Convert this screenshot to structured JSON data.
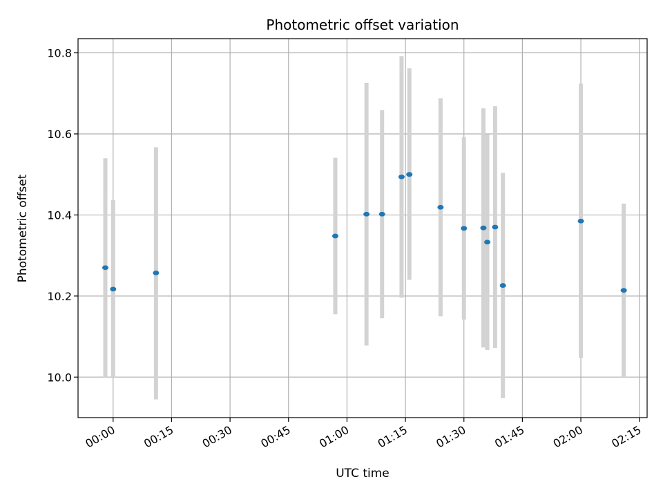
{
  "chart_data": {
    "type": "scatter",
    "title": "Photometric offset variation",
    "xlabel": "UTC time",
    "ylabel": "Photometric offset",
    "x_unit": "UTC time (HH:MM)",
    "xlim": [
      "-00:09",
      "02:17"
    ],
    "ylim": [
      9.9,
      10.835
    ],
    "x_ticks": [
      "00:00",
      "00:15",
      "00:30",
      "00:45",
      "01:00",
      "01:15",
      "01:30",
      "01:45",
      "02:00",
      "02:15"
    ],
    "y_ticks": [
      "10.0",
      "10.2",
      "10.4",
      "10.6",
      "10.8"
    ],
    "grid": true,
    "colors": {
      "point": "#1f77b4",
      "error_bar": "#d3d3d3",
      "grid": "#b0b0b0"
    },
    "points": [
      {
        "x": "-00:02",
        "y": 10.27,
        "y_low": 10.0,
        "y_high": 10.54
      },
      {
        "x": "00:00",
        "y": 10.217,
        "y_low": 10.0,
        "y_high": 10.437
      },
      {
        "x": "00:11",
        "y": 10.257,
        "y_low": 9.945,
        "y_high": 10.567
      },
      {
        "x": "00:57",
        "y": 10.348,
        "y_low": 10.155,
        "y_high": 10.541
      },
      {
        "x": "01:05",
        "y": 10.402,
        "y_low": 10.078,
        "y_high": 10.726
      },
      {
        "x": "01:09",
        "y": 10.402,
        "y_low": 10.145,
        "y_high": 10.659
      },
      {
        "x": "01:14",
        "y": 10.494,
        "y_low": 10.196,
        "y_high": 10.792
      },
      {
        "x": "01:16",
        "y": 10.5,
        "y_low": 10.24,
        "y_high": 10.762
      },
      {
        "x": "01:24",
        "y": 10.419,
        "y_low": 10.15,
        "y_high": 10.688
      },
      {
        "x": "01:30",
        "y": 10.367,
        "y_low": 10.142,
        "y_high": 10.592
      },
      {
        "x": "01:35",
        "y": 10.368,
        "y_low": 10.073,
        "y_high": 10.663
      },
      {
        "x": "01:36",
        "y": 10.333,
        "y_low": 10.067,
        "y_high": 10.599
      },
      {
        "x": "01:38",
        "y": 10.37,
        "y_low": 10.072,
        "y_high": 10.668
      },
      {
        "x": "01:40",
        "y": 10.226,
        "y_low": 9.948,
        "y_high": 10.504
      },
      {
        "x": "02:00",
        "y": 10.385,
        "y_low": 10.047,
        "y_high": 10.724
      },
      {
        "x": "02:11",
        "y": 10.214,
        "y_low": 10.0,
        "y_high": 10.428
      }
    ]
  }
}
